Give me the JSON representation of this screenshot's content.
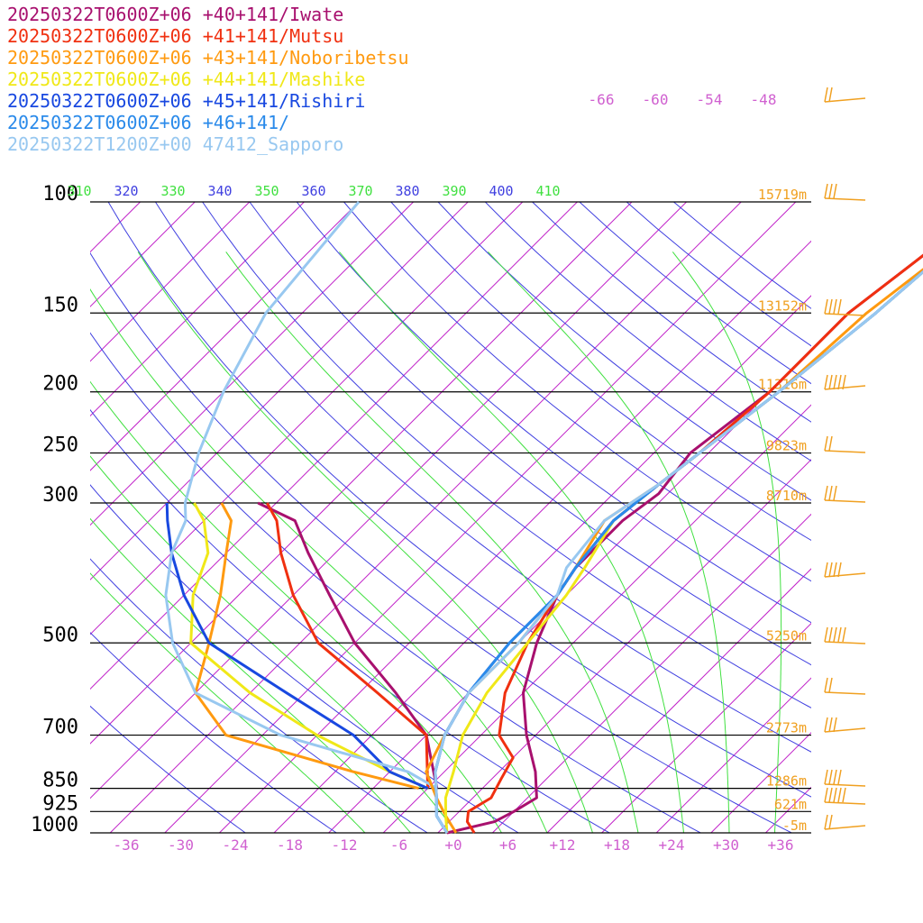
{
  "legend": [
    {
      "label": "20250322T0600Z+06 +40+141/Iwate",
      "color": "#a8106e"
    },
    {
      "label": "20250322T0600Z+06 +41+141/Mutsu",
      "color": "#f03010"
    },
    {
      "label": "20250322T0600Z+06 +43+141/Noboribetsu",
      "color": "#ff9a10"
    },
    {
      "label": "20250322T0600Z+06 +44+141/Mashike",
      "color": "#f0e818"
    },
    {
      "label": "20250322T0600Z+06 +45+141/Rishiri",
      "color": "#1848e0"
    },
    {
      "label": "20250322T0600Z+06 +46+141/",
      "color": "#2a8aea"
    },
    {
      "label": "20250322T1200Z+00 47412_Sapporo",
      "color": "#98c8f0"
    }
  ],
  "chart_data": {
    "type": "line",
    "subtype": "skew-T log-p sounding",
    "x_axis": {
      "label": "",
      "ticks": [
        "-36",
        "-30",
        "-24",
        "-18",
        "-12",
        "-6",
        "+0",
        "+6",
        "+12",
        "+18",
        "+24",
        "+30",
        "+36"
      ],
      "unit": "°C"
    },
    "y_axis": {
      "label": "",
      "scale": "log",
      "ticks": [
        "100",
        "150",
        "200",
        "250",
        "300",
        "500",
        "700",
        "850",
        "925",
        "1000"
      ],
      "unit": "hPa"
    },
    "pressure_levels": [
      100,
      150,
      200,
      250,
      300,
      500,
      700,
      850,
      925,
      1000
    ],
    "heights": [
      {
        "p": 100,
        "label": "15719m"
      },
      {
        "p": 150,
        "label": "13152m"
      },
      {
        "p": 200,
        "label": "11316m"
      },
      {
        "p": 250,
        "label": "9823m"
      },
      {
        "p": 300,
        "label": "8710m"
      },
      {
        "p": 500,
        "label": "5250m"
      },
      {
        "p": 700,
        "label": "2773m"
      },
      {
        "p": 850,
        "label": "1286m"
      },
      {
        "p": 925,
        "label": "621m"
      },
      {
        "p": 1000,
        "label": "-5m"
      }
    ],
    "theta_labels": [
      "310",
      "320",
      "330",
      "340",
      "350",
      "360",
      "370",
      "380",
      "390",
      "400",
      "410"
    ],
    "isotherm_top_labels": [
      "-66",
      "-60",
      "-54",
      "-48"
    ],
    "series": [
      {
        "name": "20250322T0600Z+06 +40+141/Iwate",
        "color": "#a8106e",
        "points": [
          [
            -1,
            1000
          ],
          [
            3,
            960
          ],
          [
            4,
            925
          ],
          [
            5,
            880
          ],
          [
            2,
            800
          ],
          [
            -3,
            700
          ],
          [
            -8,
            600
          ],
          [
            -12,
            500
          ],
          [
            -15,
            420
          ],
          [
            -16,
            380
          ],
          [
            -16,
            320
          ],
          [
            -15,
            290
          ],
          [
            -16,
            250
          ],
          [
            -14,
            200
          ],
          [
            -14,
            150
          ],
          [
            -12,
            120
          ],
          [
            -10,
            100
          ],
          [
            -18,
            75
          ],
          [
            -26,
            60
          ],
          [
            -28,
            45
          ]
        ]
      },
      {
        "name": "20250322T0600Z+06 +41+141/Mutsu",
        "color": "#f03010",
        "points": [
          [
            2,
            1000
          ],
          [
            0,
            960
          ],
          [
            -1,
            925
          ],
          [
            0,
            880
          ],
          [
            -1,
            820
          ],
          [
            -2,
            760
          ],
          [
            -6,
            700
          ],
          [
            -10,
            600
          ],
          [
            -13,
            500
          ],
          [
            -15,
            420
          ],
          [
            -16,
            380
          ],
          [
            -17,
            320
          ],
          [
            -16,
            280
          ],
          [
            -15,
            250
          ],
          [
            -14,
            200
          ],
          [
            -14,
            150
          ],
          [
            -12,
            120
          ],
          [
            -10,
            100
          ],
          [
            -16,
            80
          ],
          [
            -22,
            62
          ],
          [
            -26,
            45
          ]
        ]
      },
      {
        "name": "20250322T0600Z+06 +43+141/Noboribetsu",
        "color": "#ff9a10",
        "points": [
          [
            0,
            1000
          ],
          [
            -3,
            940
          ],
          [
            -6,
            880
          ],
          [
            -10,
            800
          ],
          [
            -12,
            700
          ],
          [
            -14,
            600
          ],
          [
            -14,
            500
          ],
          [
            -15,
            420
          ],
          [
            -16,
            380
          ],
          [
            -18,
            320
          ],
          [
            -16,
            280
          ],
          [
            -15,
            250
          ],
          [
            -13,
            200
          ],
          [
            -12,
            150
          ],
          [
            -10,
            120
          ],
          [
            -9,
            100
          ],
          [
            -12,
            85
          ],
          [
            -16,
            70
          ],
          [
            -20,
            55
          ],
          [
            -26,
            45
          ]
        ]
      },
      {
        "name": "20250322T0600Z+06 +44+141/Mashike",
        "color": "#f0e818",
        "points": [
          [
            -1,
            1000
          ],
          [
            -3,
            940
          ],
          [
            -5,
            880
          ],
          [
            -7,
            800
          ],
          [
            -10,
            700
          ],
          [
            -12,
            600
          ],
          [
            -13,
            500
          ],
          [
            -14,
            420
          ],
          [
            -15,
            380
          ],
          [
            -17,
            320
          ],
          [
            -16,
            280
          ],
          [
            -15,
            250
          ],
          [
            -13,
            200
          ],
          [
            -11,
            150
          ],
          [
            -10,
            120
          ],
          [
            -9,
            100
          ],
          [
            -13,
            85
          ],
          [
            -18,
            70
          ],
          [
            -22,
            55
          ],
          [
            -27,
            45
          ]
        ]
      },
      {
        "name": "20250322T0600Z+06 +45+141/Rishiri",
        "color": "#1848e0",
        "points": [
          [
            -1,
            1000
          ],
          [
            -4,
            940
          ],
          [
            -6,
            880
          ],
          [
            -9,
            800
          ],
          [
            -12,
            700
          ],
          [
            -14,
            600
          ],
          [
            -15,
            500
          ],
          [
            -15,
            420
          ],
          [
            -16,
            380
          ],
          [
            -17,
            320
          ],
          [
            -16,
            280
          ],
          [
            -15,
            250
          ],
          [
            -13,
            200
          ],
          [
            -11,
            150
          ],
          [
            -10,
            120
          ],
          [
            -8,
            100
          ],
          [
            -12,
            85
          ],
          [
            -17,
            70
          ],
          [
            -22,
            55
          ],
          [
            -27,
            45
          ]
        ]
      },
      {
        "name": "20250322T0600Z+06 +46+141/",
        "color": "#2a8aea",
        "points": [
          [
            -1,
            1000
          ],
          [
            -4,
            940
          ],
          [
            -6,
            880
          ],
          [
            -9,
            800
          ],
          [
            -12,
            700
          ],
          [
            -14,
            600
          ],
          [
            -15,
            500
          ],
          [
            -15,
            420
          ],
          [
            -16,
            380
          ],
          [
            -17,
            320
          ],
          [
            -16,
            280
          ],
          [
            -15,
            250
          ],
          [
            -13,
            200
          ],
          [
            -11,
            150
          ],
          [
            -10,
            120
          ],
          [
            -8,
            100
          ],
          [
            -13,
            85
          ],
          [
            -17,
            70
          ],
          [
            -22,
            55
          ],
          [
            -27,
            45
          ]
        ]
      },
      {
        "name": "20250322T1200Z+00 47412_Sapporo",
        "color": "#98c8f0",
        "points": [
          [
            -1,
            1000
          ],
          [
            -4,
            940
          ],
          [
            -6,
            880
          ],
          [
            -9,
            800
          ],
          [
            -12,
            700
          ],
          [
            -14,
            600
          ],
          [
            -14,
            500
          ],
          [
            -15,
            420
          ],
          [
            -17,
            380
          ],
          [
            -18,
            320
          ],
          [
            -16,
            280
          ],
          [
            -15,
            250
          ],
          [
            -13,
            200
          ],
          [
            -11,
            150
          ],
          [
            -10,
            120
          ],
          [
            -9,
            100
          ]
        ]
      }
    ],
    "dewpoint_series": [
      {
        "name": "Iwate dewpoint",
        "color": "#a8106e",
        "points": [
          [
            -7,
            850
          ],
          [
            -14,
            700
          ],
          [
            -22,
            600
          ],
          [
            -32,
            500
          ],
          [
            -40,
            420
          ],
          [
            -47,
            360
          ],
          [
            -52,
            320
          ],
          [
            -58,
            300
          ]
        ]
      },
      {
        "name": "Mutsu dewpoint",
        "color": "#f03010",
        "points": [
          [
            -8,
            850
          ],
          [
            -14,
            700
          ],
          [
            -24,
            600
          ],
          [
            -36,
            500
          ],
          [
            -44,
            420
          ],
          [
            -50,
            360
          ],
          [
            -54,
            320
          ],
          [
            -57,
            300
          ]
        ]
      },
      {
        "name": "Noboribetsu dewpoint",
        "color": "#ff9a10",
        "points": [
          [
            -9,
            850
          ],
          [
            -18,
            800
          ],
          [
            -36,
            700
          ],
          [
            -44,
            600
          ],
          [
            -48,
            500
          ],
          [
            -52,
            420
          ],
          [
            -56,
            360
          ],
          [
            -59,
            320
          ],
          [
            -62,
            300
          ]
        ]
      },
      {
        "name": "Mashike dewpoint",
        "color": "#f0e818",
        "points": [
          [
            -8,
            850
          ],
          [
            -14,
            800
          ],
          [
            -26,
            700
          ],
          [
            -38,
            600
          ],
          [
            -50,
            500
          ],
          [
            -55,
            420
          ],
          [
            -58,
            360
          ],
          [
            -62,
            320
          ],
          [
            -65,
            300
          ]
        ]
      },
      {
        "name": "Rishiri dewpoint",
        "color": "#1848e0",
        "points": [
          [
            -8,
            850
          ],
          [
            -14,
            800
          ],
          [
            -22,
            700
          ],
          [
            -34,
            600
          ],
          [
            -48,
            500
          ],
          [
            -56,
            420
          ],
          [
            -62,
            360
          ],
          [
            -66,
            320
          ],
          [
            -68,
            300
          ]
        ]
      },
      {
        "name": "Sapporo dewpoint",
        "color": "#98c8f0",
        "points": [
          [
            -7,
            850
          ],
          [
            -12,
            800
          ],
          [
            -30,
            700
          ],
          [
            -44,
            600
          ],
          [
            -52,
            500
          ],
          [
            -58,
            420
          ],
          [
            -62,
            360
          ],
          [
            -64,
            320
          ],
          [
            -66,
            300
          ],
          [
            -70,
            250
          ],
          [
            -74,
            200
          ],
          [
            -78,
            150
          ],
          [
            -80,
            100
          ]
        ]
      }
    ],
    "grid": true,
    "legend_position": "top-left"
  }
}
